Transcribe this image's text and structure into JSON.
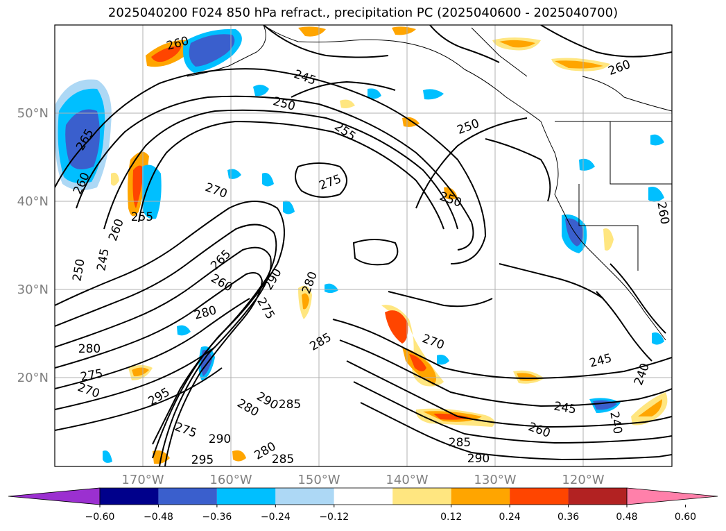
{
  "title": "2025040200 F024 850 hPa refract., precipitation PC (2025040600 - 2025040700)",
  "lat_labels": [
    "50°N",
    "40°N",
    "30°N",
    "20°N"
  ],
  "lon_labels": [
    "170°W",
    "160°W",
    "150°W",
    "140°W",
    "130°W",
    "120°W"
  ],
  "colorbar": {
    "colors": [
      "#9b30d0",
      "#00008b",
      "#3a5fcd",
      "#00bfff",
      "#add8f5",
      "#ffffff",
      "#ffe680",
      "#ffa500",
      "#ff4500",
      "#b22222",
      "#ff80aa"
    ],
    "tick_labels": [
      "−0.60",
      "−0.48",
      "−0.36",
      "−0.24",
      "−0.12",
      "0.12",
      "0.24",
      "0.36",
      "0.48",
      "0.60"
    ]
  },
  "contour_labels": [
    {
      "text": "260"
    },
    {
      "text": "245"
    },
    {
      "text": "250"
    },
    {
      "text": "265"
    },
    {
      "text": "260"
    },
    {
      "text": "255"
    },
    {
      "text": "260"
    },
    {
      "text": "250"
    },
    {
      "text": "255"
    },
    {
      "text": "270"
    },
    {
      "text": "275"
    },
    {
      "text": "265"
    },
    {
      "text": "260"
    },
    {
      "text": "280"
    },
    {
      "text": "250"
    },
    {
      "text": "245"
    },
    {
      "text": "260"
    },
    {
      "text": "280"
    },
    {
      "text": "275"
    },
    {
      "text": "270"
    },
    {
      "text": "280"
    },
    {
      "text": "285"
    },
    {
      "text": "290"
    },
    {
      "text": "275"
    },
    {
      "text": "295"
    },
    {
      "text": "285"
    },
    {
      "text": "290"
    },
    {
      "text": "280"
    },
    {
      "text": "275"
    },
    {
      "text": "290"
    },
    {
      "text": "280"
    },
    {
      "text": "295"
    },
    {
      "text": "285"
    },
    {
      "text": "270"
    },
    {
      "text": "245"
    },
    {
      "text": "240"
    },
    {
      "text": "245"
    },
    {
      "text": "240"
    },
    {
      "text": "260"
    },
    {
      "text": "285"
    },
    {
      "text": "290"
    },
    {
      "text": "250"
    },
    {
      "text": "260"
    }
  ]
}
